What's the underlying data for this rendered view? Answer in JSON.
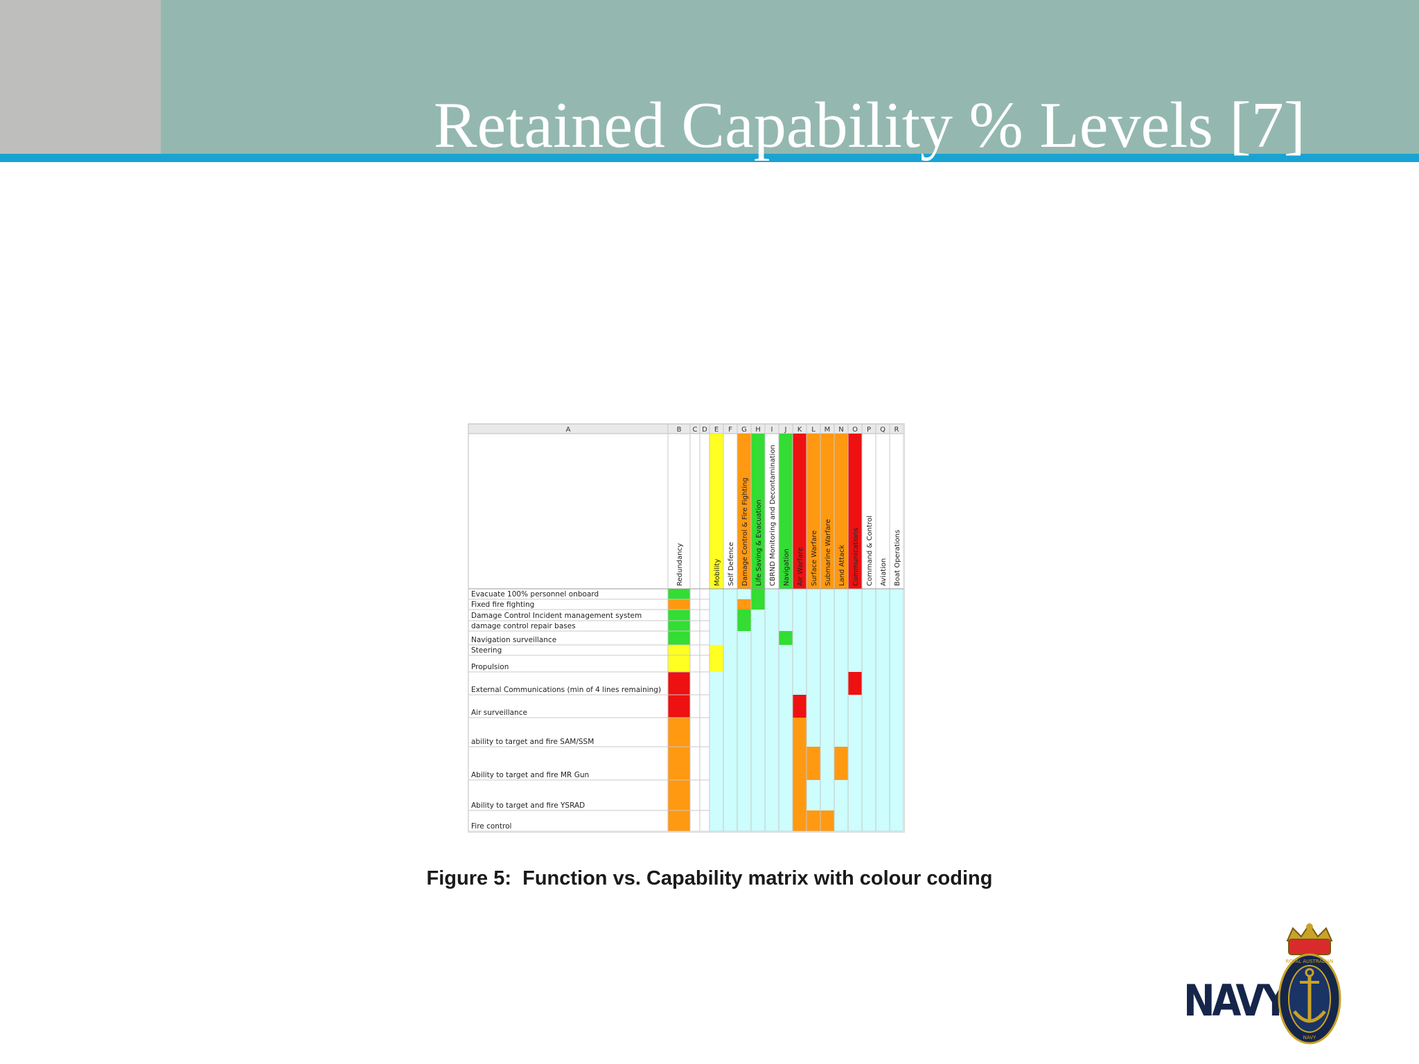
{
  "slide": {
    "title": "Retained Capability % Levels [7]",
    "caption": "Figure 5:  Function vs. Capability matrix with colour coding"
  },
  "colors": {
    "banner": "#94b8af",
    "side_block": "#bebfbc",
    "rule": "#1aa3d2",
    "green": "#33dd33",
    "yellow": "#ffff22",
    "orange": "#ff9911",
    "red": "#ee1111",
    "light_cyan": "#cdfdfd"
  },
  "matrix": {
    "column_letters": [
      "A",
      "B",
      "C",
      "D",
      "E",
      "F",
      "G",
      "H",
      "I",
      "J",
      "K",
      "L",
      "M",
      "N",
      "O",
      "P",
      "Q",
      "R"
    ],
    "capabilities": [
      {
        "col": "B",
        "label": "Redundancy",
        "color": ""
      },
      {
        "col": "C",
        "label": "",
        "color": ""
      },
      {
        "col": "D",
        "label": "",
        "color": ""
      },
      {
        "col": "E",
        "label": "Mobility",
        "color": "yellow"
      },
      {
        "col": "F",
        "label": "Self Defence",
        "color": ""
      },
      {
        "col": "G",
        "label": "Damage Control & Fire Fighting",
        "color": "orange"
      },
      {
        "col": "H",
        "label": "Life Saving & Evacuation",
        "color": "green"
      },
      {
        "col": "I",
        "label": "CBRND Monitoring and Decontamination",
        "color": ""
      },
      {
        "col": "J",
        "label": "Navigation",
        "color": "green"
      },
      {
        "col": "K",
        "label": "Air Warfare",
        "color": "red"
      },
      {
        "col": "L",
        "label": "Surface Warfare",
        "color": "orange"
      },
      {
        "col": "M",
        "label": "Submarine Warfare",
        "color": "orange"
      },
      {
        "col": "N",
        "label": "Land Attack",
        "color": "orange"
      },
      {
        "col": "O",
        "label": "Communications",
        "color": "red"
      },
      {
        "col": "P",
        "label": "Command & Control",
        "color": ""
      },
      {
        "col": "Q",
        "label": "Aviation",
        "color": ""
      },
      {
        "col": "R",
        "label": "Boat Operations",
        "color": ""
      }
    ],
    "functions": [
      {
        "label": "Evacuate 100% personnel onboard",
        "redundancy": "green",
        "cells": {
          "H": "green"
        }
      },
      {
        "label": "Fixed fire fighting",
        "redundancy": "orange",
        "cells": {
          "G": "orange",
          "H": "green"
        }
      },
      {
        "label": "Damage Control Incident management system",
        "redundancy": "green",
        "cells": {
          "G": "green"
        }
      },
      {
        "label": "damage control repair bases",
        "redundancy": "green",
        "cells": {
          "G": "green"
        }
      },
      {
        "label": "Navigation surveillance",
        "redundancy": "green",
        "cells": {
          "J": "green"
        }
      },
      {
        "label": "Steering",
        "redundancy": "yellow",
        "cells": {
          "E": "yellow"
        }
      },
      {
        "label": "Propulsion",
        "redundancy": "yellow",
        "cells": {
          "E": "yellow"
        }
      },
      {
        "label": "External Communications (min of 4 lines remaining)",
        "redundancy": "red",
        "cells": {
          "O": "red"
        }
      },
      {
        "label": "Air surveillance",
        "redundancy": "red",
        "cells": {
          "K": "red"
        }
      },
      {
        "label": "ability to target and fire SAM/SSM",
        "redundancy": "orange",
        "cells": {
          "K": "orange"
        }
      },
      {
        "label": "Ability to target and fire MR Gun",
        "redundancy": "orange",
        "cells": {
          "K": "orange",
          "L": "orange",
          "N": "orange"
        }
      },
      {
        "label": "Ability to target and fire YSRAD",
        "redundancy": "orange",
        "cells": {
          "K": "orange"
        }
      },
      {
        "label": "Fire control",
        "redundancy": "orange",
        "cells": {
          "K": "orange",
          "L": "orange",
          "M": "orange"
        }
      }
    ]
  },
  "logo": {
    "wordmark": "NAVY",
    "crest_text": "ROYAL AUSTRALIAN NAVY"
  }
}
